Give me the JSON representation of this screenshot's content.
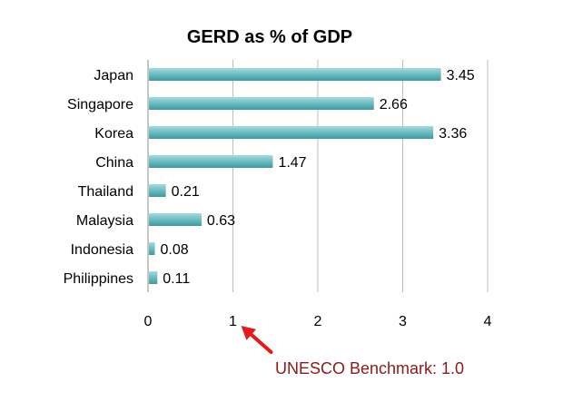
{
  "chart_data": {
    "type": "bar",
    "orientation": "horizontal",
    "title": "GERD as % of GDP",
    "categories": [
      "Japan",
      "Singapore",
      "Korea",
      "China",
      "Thailand",
      "Malaysia",
      "Indonesia",
      "Philippines"
    ],
    "values": [
      3.45,
      2.66,
      3.36,
      1.47,
      0.21,
      0.63,
      0.08,
      0.11
    ],
    "value_labels": [
      "3.45",
      "2.66",
      "3.36",
      "1.47",
      "0.21",
      "0.63",
      "0.08",
      "0.11"
    ],
    "xlim": [
      0,
      4
    ],
    "xticks": [
      "0",
      "1",
      "2",
      "3",
      "4"
    ],
    "xlabel": "",
    "ylabel": "",
    "grid": "vertical",
    "legend": "none",
    "bar_color": "#5fb3b8",
    "annotation": {
      "text": "UNESCO Benchmark: 1.0",
      "points_to_x": 1,
      "color": "#8b1a1a",
      "arrow_color": "#e31b1b"
    }
  }
}
